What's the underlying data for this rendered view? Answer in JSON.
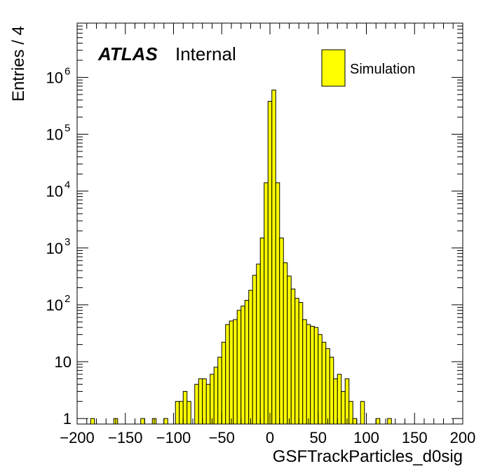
{
  "chart_data": {
    "type": "bar",
    "xlabel": "GSFTrackParticles_d0sig",
    "ylabel": "Entries / 4",
    "xlim": [
      -200,
      200
    ],
    "ylim": [
      0.8,
      9000000
    ],
    "yscale": "log",
    "bin_width": 4,
    "x_ticks": [
      "−200",
      "−150",
      "−100",
      "−50",
      "0",
      "50",
      "100",
      "150",
      "200"
    ],
    "x_tick_values": [
      -200,
      -150,
      -100,
      -50,
      0,
      50,
      100,
      150,
      200
    ],
    "y_ticks": [
      {
        "value": 1,
        "base": "1",
        "exp": ""
      },
      {
        "value": 10,
        "base": "10",
        "exp": ""
      },
      {
        "value": 100,
        "base": "10",
        "exp": "2"
      },
      {
        "value": 1000,
        "base": "10",
        "exp": "3"
      },
      {
        "value": 10000,
        "base": "10",
        "exp": "4"
      },
      {
        "value": 100000,
        "base": "10",
        "exp": "5"
      },
      {
        "value": 1000000,
        "base": "10",
        "exp": "6"
      }
    ],
    "fill_color": "#ffff00",
    "line_color": "#000000",
    "legend_position": "top-right",
    "series": [
      {
        "name": "Simulation",
        "bins": [
          {
            "x": -184,
            "y": 1
          },
          {
            "x": -160,
            "y": 1
          },
          {
            "x": -132,
            "y": 1
          },
          {
            "x": -120,
            "y": 1
          },
          {
            "x": -108,
            "y": 1
          },
          {
            "x": -96,
            "y": 2
          },
          {
            "x": -92,
            "y": 2
          },
          {
            "x": -88,
            "y": 3
          },
          {
            "x": -84,
            "y": 2
          },
          {
            "x": -76,
            "y": 4
          },
          {
            "x": -72,
            "y": 5
          },
          {
            "x": -68,
            "y": 5
          },
          {
            "x": -64,
            "y": 4
          },
          {
            "x": -60,
            "y": 6
          },
          {
            "x": -56,
            "y": 8
          },
          {
            "x": -52,
            "y": 12
          },
          {
            "x": -48,
            "y": 22
          },
          {
            "x": -44,
            "y": 45
          },
          {
            "x": -40,
            "y": 52
          },
          {
            "x": -36,
            "y": 55
          },
          {
            "x": -32,
            "y": 80
          },
          {
            "x": -28,
            "y": 95
          },
          {
            "x": -24,
            "y": 120
          },
          {
            "x": -20,
            "y": 180
          },
          {
            "x": -16,
            "y": 330
          },
          {
            "x": -12,
            "y": 520
          },
          {
            "x": -8,
            "y": 1500
          },
          {
            "x": -4,
            "y": 14000
          },
          {
            "x": 0,
            "y": 380000
          },
          {
            "x": 4,
            "y": 600000
          },
          {
            "x": 8,
            "y": 14000
          },
          {
            "x": 12,
            "y": 1500
          },
          {
            "x": 16,
            "y": 550
          },
          {
            "x": 20,
            "y": 320
          },
          {
            "x": 24,
            "y": 190
          },
          {
            "x": 28,
            "y": 130
          },
          {
            "x": 32,
            "y": 110
          },
          {
            "x": 36,
            "y": 55
          },
          {
            "x": 40,
            "y": 45
          },
          {
            "x": 44,
            "y": 42
          },
          {
            "x": 48,
            "y": 40
          },
          {
            "x": 52,
            "y": 30
          },
          {
            "x": 56,
            "y": 22
          },
          {
            "x": 60,
            "y": 17
          },
          {
            "x": 64,
            "y": 12
          },
          {
            "x": 68,
            "y": 5
          },
          {
            "x": 72,
            "y": 6
          },
          {
            "x": 76,
            "y": 3
          },
          {
            "x": 80,
            "y": 5
          },
          {
            "x": 84,
            "y": 2
          },
          {
            "x": 88,
            "y": 1
          },
          {
            "x": 96,
            "y": 2
          },
          {
            "x": 112,
            "y": 1
          },
          {
            "x": 124,
            "y": 1
          }
        ]
      }
    ],
    "annotations": {
      "experiment": "ATLAS",
      "status": "Internal"
    }
  }
}
